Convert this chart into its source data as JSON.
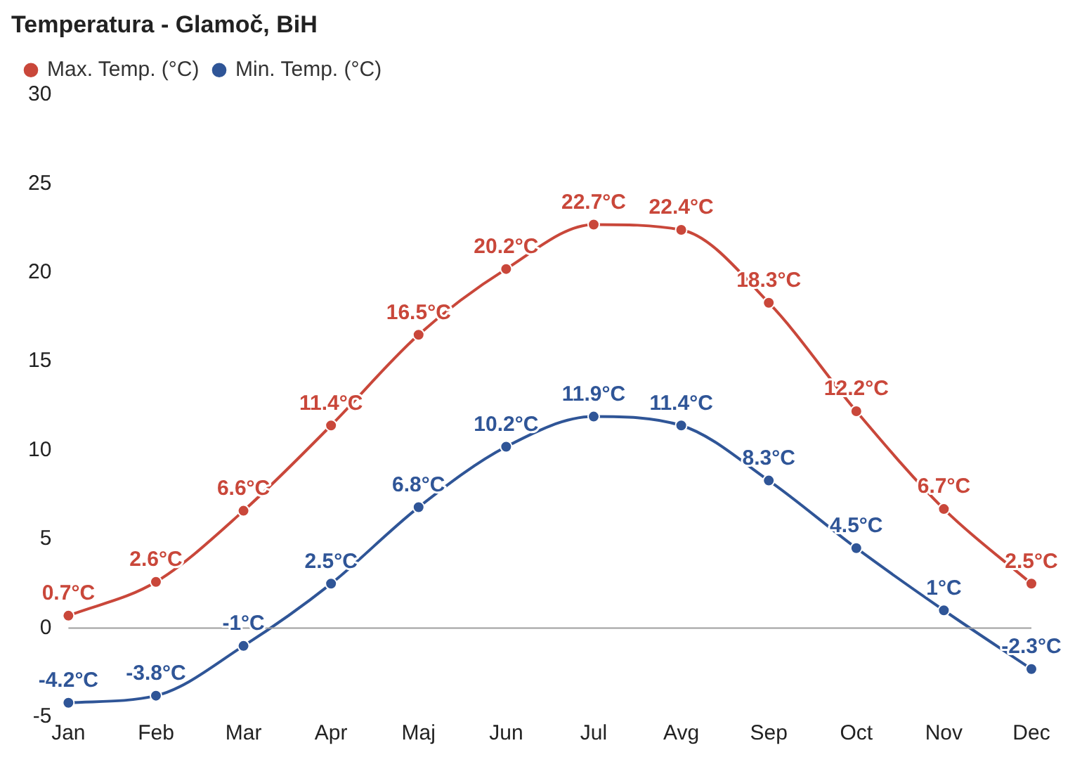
{
  "chart_data": {
    "type": "line",
    "title": "Temperatura - Glamoč, BiH",
    "categories": [
      "Jan",
      "Feb",
      "Mar",
      "Apr",
      "Maj",
      "Jun",
      "Jul",
      "Avg",
      "Sep",
      "Oct",
      "Nov",
      "Dec"
    ],
    "series": [
      {
        "name": "Max. Temp. (°C)",
        "color": "#c9473a",
        "values": [
          0.7,
          2.6,
          6.6,
          11.4,
          16.5,
          20.2,
          22.7,
          22.4,
          18.3,
          12.2,
          6.7,
          2.5
        ],
        "value_labels": [
          "0.7°C",
          "2.6°C",
          "6.6°C",
          "11.4°C",
          "16.5°C",
          "20.2°C",
          "22.7°C",
          "22.4°C",
          "18.3°C",
          "12.2°C",
          "6.7°C",
          "2.5°C"
        ]
      },
      {
        "name": "Min. Temp. (°C)",
        "color": "#2f5597",
        "values": [
          -4.2,
          -3.8,
          -1,
          2.5,
          6.8,
          10.2,
          11.9,
          11.4,
          8.3,
          4.5,
          1,
          -2.3
        ],
        "value_labels": [
          "-4.2°C",
          "-3.8°C",
          "-1°C",
          "2.5°C",
          "6.8°C",
          "10.2°C",
          "11.9°C",
          "11.4°C",
          "8.3°C",
          "4.5°C",
          "1°C",
          "-2.3°C"
        ]
      }
    ],
    "ylim": [
      -5,
      30
    ],
    "yticks": [
      -5,
      0,
      5,
      10,
      15,
      20,
      25,
      30
    ],
    "grid": false,
    "legend": "top left",
    "marker": "circle",
    "line_style": "solid",
    "ref_lines": [
      {
        "axis": "y",
        "value": 0,
        "color": "#9e9e9e"
      }
    ]
  }
}
